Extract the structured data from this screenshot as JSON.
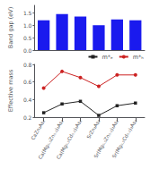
{
  "chart_data": [
    {
      "type": "bar",
      "values": [
        1.2,
        1.45,
        1.35,
        1.0,
        1.23,
        1.2
      ],
      "color": "#1a1aee",
      "ylabel": "Band gap (eV)",
      "ylim": [
        0.0,
        1.8
      ],
      "yticks": [
        {
          "value": 0.0,
          "label": "0.0"
        },
        {
          "value": 0.5,
          "label": "0.5"
        },
        {
          "value": 1.0,
          "label": "1.0"
        },
        {
          "value": 1.5,
          "label": "1.5"
        }
      ],
      "grid": false,
      "tick_labels": "y"
    },
    {
      "type": "line",
      "categories": [
        "CaZn₂As₂",
        "Ca(Mg₀.₅Zn₀.₅)₂As₂",
        "Ca(Mg₀.₅Cd₀.₅)₂As₂",
        "SrZn₂As₂",
        "Sr(Mg₀.₅Zn₀.₅)₂As₂",
        "Sr(Mg₀.₅Cd₀.₅)₂As₂"
      ],
      "series": [
        {
          "name": "m*ₑ",
          "color": "#222222",
          "marker": "square",
          "values": [
            0.25,
            0.35,
            0.38,
            0.22,
            0.33,
            0.36
          ]
        },
        {
          "name": "m*ₕ",
          "color": "#cc2222",
          "marker": "circle",
          "values": [
            0.53,
            0.72,
            0.65,
            0.55,
            0.68,
            0.68
          ]
        }
      ],
      "ylabel": "Effective mass",
      "ylim": [
        0.2,
        0.8
      ],
      "yticks": [
        0.2,
        0.4,
        0.6,
        0.8
      ],
      "grid": false,
      "legend": "upper right"
    }
  ]
}
